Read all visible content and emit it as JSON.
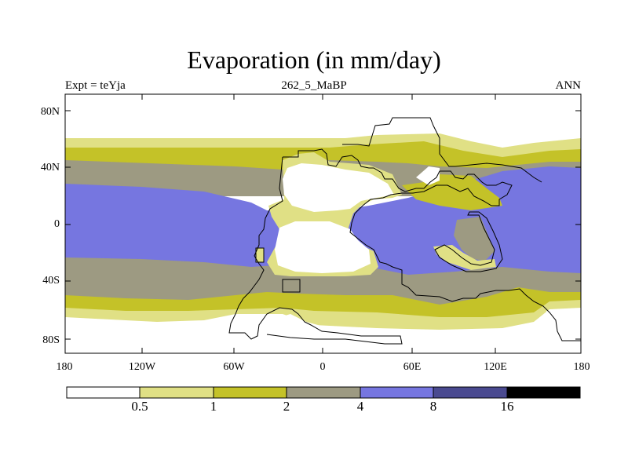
{
  "title": "Evaporation (in mm/day)",
  "subtitle_left": "Expt = teYja",
  "subtitle_center": "262_5_MaBP",
  "subtitle_right": "ANN",
  "lat_labels": [
    "80N",
    "40N",
    "0",
    "40S",
    "80S"
  ],
  "lon_labels": [
    "180",
    "120W",
    "60W",
    "0",
    "60E",
    "120E",
    "180"
  ],
  "colorbar": {
    "labels": [
      "0.5",
      "1",
      "2",
      "4",
      "8",
      "16"
    ],
    "colors": [
      "#ffffff",
      "#e0e085",
      "#c4c228",
      "#9d9a82",
      "#7676e0",
      "#4a4a90",
      "#000000"
    ]
  },
  "fill_colors": {
    "lt05": "#ffffff",
    "b05_1": "#e0e085",
    "b1_2": "#c4c228",
    "b2_4": "#9d9a82",
    "b4_8": "#7676e0"
  }
}
